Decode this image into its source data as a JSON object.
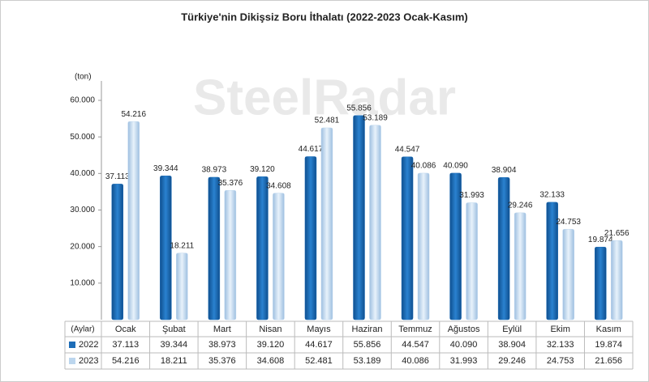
{
  "chart_data": {
    "type": "bar",
    "title": "Türkiye'nin Dikişsiz Boru İthalatı (2022-2023 Ocak-Kasım)",
    "watermark": "SteelRadar",
    "y_label": "(ton)",
    "table_header": "(Aylar)",
    "categories": [
      "Ocak",
      "Şubat",
      "Mart",
      "Nisan",
      "Mayıs",
      "Haziran",
      "Temmuz",
      "Ağustos",
      "Eylül",
      "Ekim",
      "Kasım"
    ],
    "series": [
      {
        "name": "2022",
        "color": "#1d6db7",
        "values": [
          37113,
          39344,
          38973,
          39120,
          44617,
          55856,
          44547,
          40090,
          38904,
          32133,
          19874
        ],
        "value_labels": [
          "37.113",
          "39.344",
          "38.973",
          "39.120",
          "44.617",
          "55.856",
          "44.547",
          "40.090",
          "38.904",
          "32.133",
          "19.874"
        ]
      },
      {
        "name": "2023",
        "color": "#bcd6ee",
        "values": [
          54216,
          18211,
          35376,
          34608,
          52481,
          53189,
          40086,
          31993,
          29246,
          24753,
          21656
        ],
        "value_labels": [
          "54.216",
          "18.211",
          "35.376",
          "34.608",
          "52.481",
          "53.189",
          "40.086",
          "31.993",
          "29.246",
          "24.753",
          "21.656"
        ]
      }
    ],
    "ylim": [
      0,
      60000
    ],
    "yticks": [
      {
        "value": 10000,
        "label": "10.000"
      },
      {
        "value": 20000,
        "label": "20.000"
      },
      {
        "value": 30000,
        "label": "30.000"
      },
      {
        "value": 40000,
        "label": "40.000"
      },
      {
        "value": 50000,
        "label": "50.000"
      },
      {
        "value": 60000,
        "label": "60.000"
      }
    ]
  }
}
